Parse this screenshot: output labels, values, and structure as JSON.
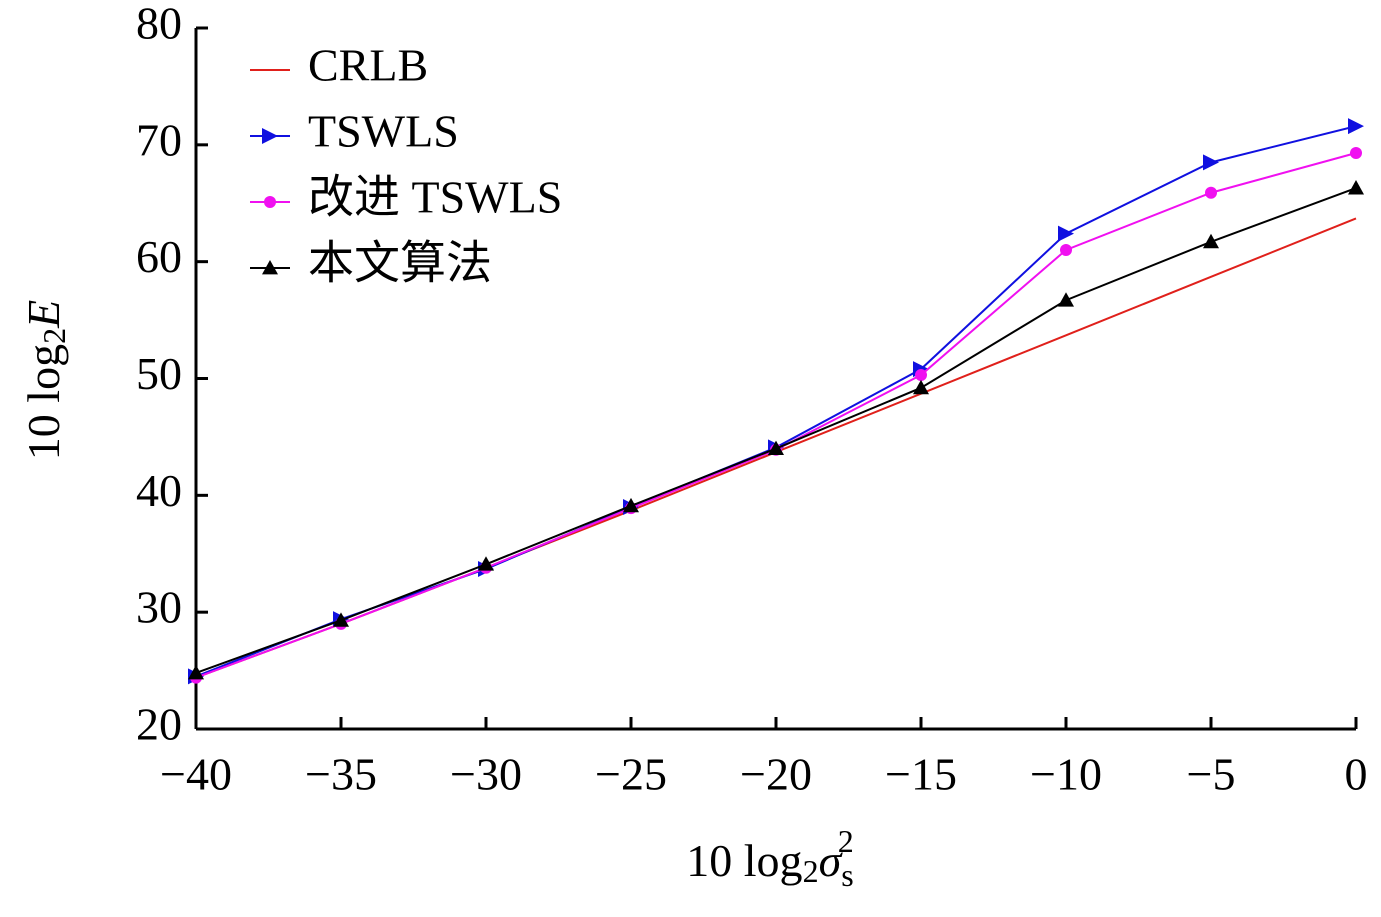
{
  "chart_data": {
    "type": "line",
    "ylabel_parts": [
      "10 log",
      "2",
      "E"
    ],
    "xlabel_parts": [
      "10 log",
      "2",
      "σ",
      "s",
      "2"
    ],
    "x": [
      -40,
      -35,
      -30,
      -25,
      -20,
      -15,
      -10,
      -5,
      0
    ],
    "series": [
      {
        "name": "CRLB",
        "color": "#e0201b",
        "values": [
          24.4,
          29.0,
          33.8,
          38.7,
          43.7,
          48.7,
          53.7,
          58.7,
          63.7
        ]
      },
      {
        "name": "TSWLS",
        "color": "#1010e0",
        "marker": "triangle-right",
        "values": [
          24.5,
          29.4,
          33.7,
          39.0,
          44.1,
          50.8,
          62.4,
          68.5,
          71.6
        ]
      },
      {
        "name": "改进 TSWLS",
        "color": "#f010f0",
        "marker": "circle",
        "values": [
          24.4,
          29.0,
          33.8,
          38.9,
          43.9,
          50.3,
          61.0,
          65.9,
          69.3
        ]
      },
      {
        "name": "本文算法",
        "color": "#000000",
        "marker": "triangle-up",
        "values": [
          24.8,
          29.3,
          34.1,
          39.1,
          44.0,
          49.2,
          56.7,
          61.7,
          66.3
        ]
      }
    ],
    "xlim": [
      -40,
      0
    ],
    "xticks": [
      {
        "value": -40,
        "label": "−40"
      },
      {
        "value": -35,
        "label": "−35"
      },
      {
        "value": -30,
        "label": "−30"
      },
      {
        "value": -25,
        "label": "−25"
      },
      {
        "value": -20,
        "label": "−20"
      },
      {
        "value": -15,
        "label": "−15"
      },
      {
        "value": -10,
        "label": "−10"
      },
      {
        "value": -5,
        "label": "−5"
      },
      0
    ],
    "ylim": [
      20,
      80
    ],
    "yticks": [
      20,
      30,
      40,
      50,
      60,
      70,
      80
    ],
    "grid": false,
    "legend": "upper-left"
  }
}
